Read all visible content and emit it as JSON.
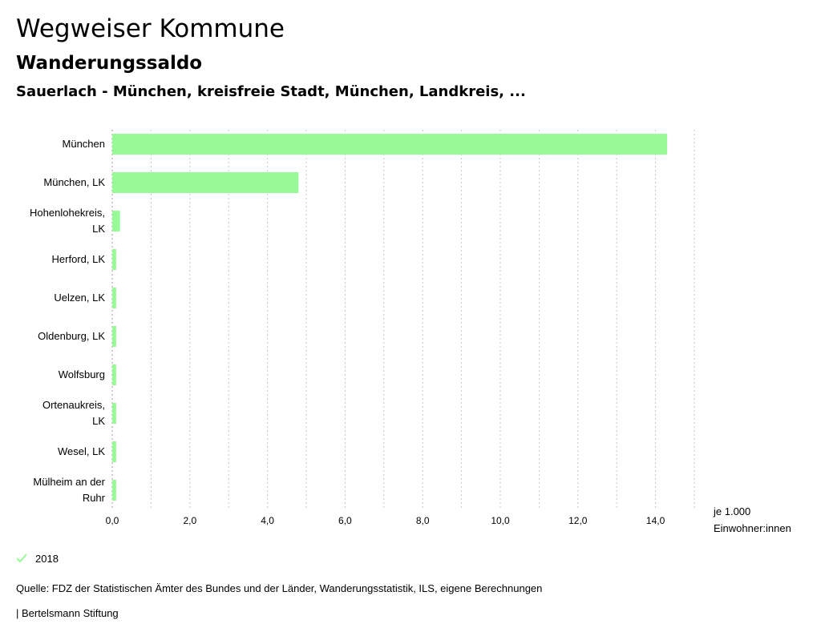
{
  "header": {
    "app_title": "Wegweiser Kommune",
    "subtitle": "Wanderungssaldo",
    "region": "Sauerlach - München, kreisfreie Stadt, München, Landkreis, ..."
  },
  "legend": {
    "label": "2018",
    "color": "#98fb98"
  },
  "footer": {
    "source": "Quelle: FDZ der Statistischen Ämter des Bundes und der Länder, Wanderungsstatistik, ILS, eigene Berechnungen",
    "publisher": "| Bertelsmann Stiftung"
  },
  "chart_data": {
    "type": "bar",
    "orientation": "horizontal",
    "title": "Wanderungssaldo",
    "unit_label": [
      "je 1.000",
      "Einwohner:innen"
    ],
    "categories": [
      [
        "München"
      ],
      [
        "München, LK"
      ],
      [
        "Hohenlohekreis,",
        "LK"
      ],
      [
        "Herford, LK"
      ],
      [
        "Uelzen, LK"
      ],
      [
        "Oldenburg, LK"
      ],
      [
        "Wolfsburg"
      ],
      [
        "Ortenaukreis,",
        "LK"
      ],
      [
        "Wesel, LK"
      ],
      [
        "Mülheim an der",
        "Ruhr"
      ]
    ],
    "series": [
      {
        "name": "2018",
        "color": "#98fb98",
        "values": [
          14.3,
          4.8,
          0.2,
          0.1,
          0.1,
          0.1,
          0.1,
          0.1,
          0.1,
          0.1
        ]
      }
    ],
    "xlim": [
      0,
      15
    ],
    "xticks": [
      0,
      2,
      4,
      6,
      8,
      10,
      12,
      14
    ],
    "xtick_labels": [
      "0,0",
      "2,0",
      "4,0",
      "6,0",
      "8,0",
      "10,0",
      "12,0",
      "14,0"
    ],
    "grid": "vertical dotted, every 1.0"
  }
}
